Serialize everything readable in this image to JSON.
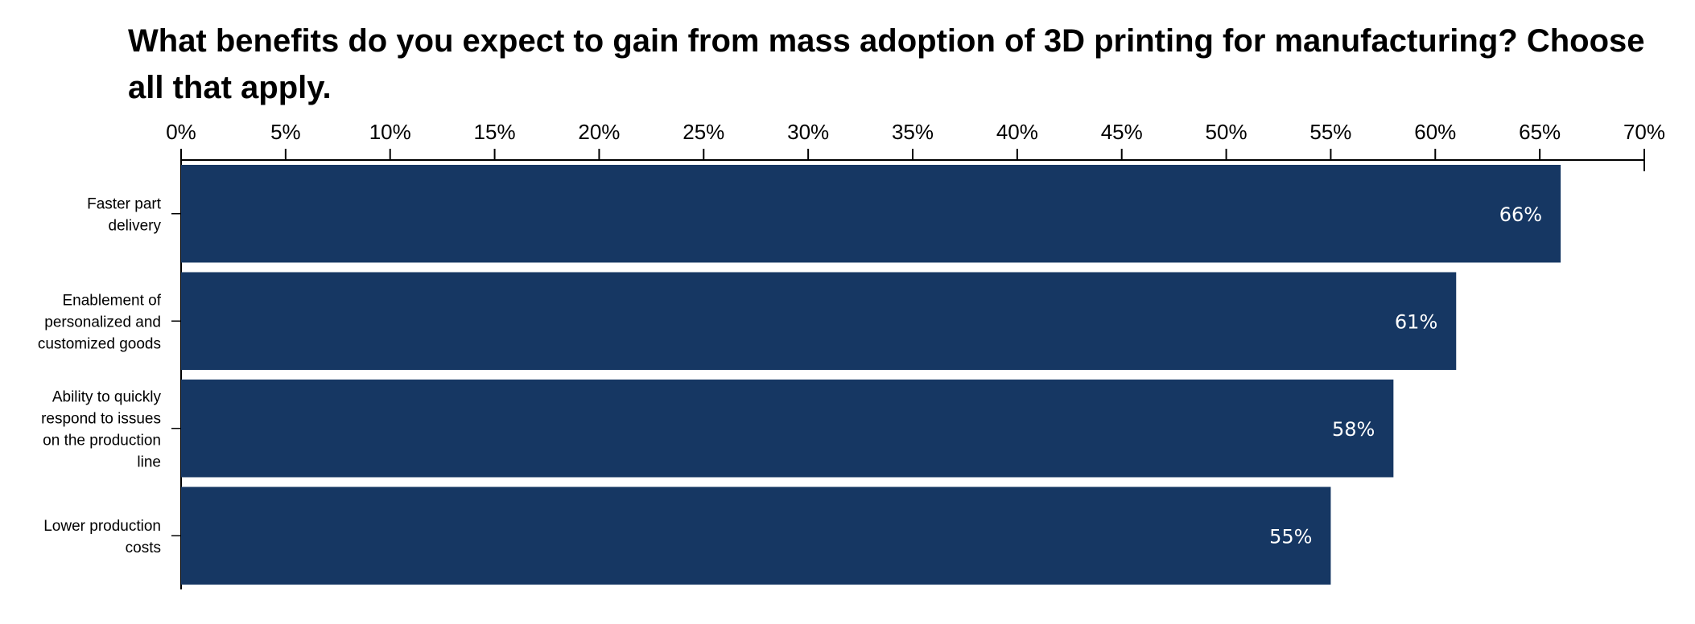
{
  "chart_data": {
    "type": "bar",
    "orientation": "horizontal",
    "title": "What benefits do you expect to gain from mass adoption of 3D printing for manufacturing? Choose all that apply.",
    "categories": [
      "Faster part delivery",
      "Enablement of personalized and customized goods",
      "Ability to quickly respond to issues on the production line",
      "Lower production costs"
    ],
    "category_lines": [
      [
        "Faster part",
        "delivery"
      ],
      [
        "Enablement of",
        "personalized and",
        "customized goods"
      ],
      [
        "Ability to quickly",
        "respond to issues",
        "on the production",
        "line"
      ],
      [
        "Lower production",
        "costs"
      ]
    ],
    "values": [
      66,
      61,
      58,
      55
    ],
    "value_labels": [
      "66%",
      "61%",
      "58%",
      "55%"
    ],
    "xlim": [
      0,
      70
    ],
    "x_ticks": [
      0,
      5,
      10,
      15,
      20,
      25,
      30,
      35,
      40,
      45,
      50,
      55,
      60,
      65,
      70
    ],
    "x_tick_labels": [
      "0%",
      "5%",
      "10%",
      "15%",
      "20%",
      "25%",
      "30%",
      "35%",
      "40%",
      "45%",
      "50%",
      "55%",
      "60%",
      "65%",
      "70%"
    ],
    "axis_position": "top",
    "grid": false,
    "bar_color": "#163763",
    "label_color": "#ffffff",
    "xlabel": "",
    "ylabel": ""
  }
}
